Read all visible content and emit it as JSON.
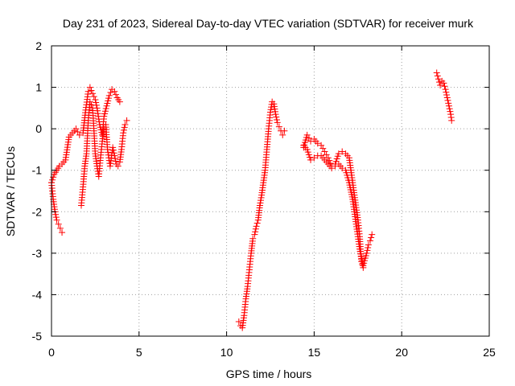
{
  "chart_data": {
    "type": "scatter",
    "title": "Day 231 of 2023, Sidereal Day-to-day VTEC variation (SDTVAR) for receiver murk",
    "xlabel": "GPS time / hours",
    "ylabel": "SDTVAR / TECUs",
    "xlim": [
      0,
      25
    ],
    "ylim": [
      -5,
      2
    ],
    "xticks": [
      "0",
      "5",
      "10",
      "15",
      "20",
      "25"
    ],
    "yticks": [
      "2",
      "1",
      "0",
      "-1",
      "-2",
      "-3",
      "-4",
      "-5"
    ],
    "grid": true,
    "marker": "plus",
    "color": "#ff0000",
    "series": [
      {
        "name": "segment-1",
        "x": [
          0.0,
          0.1,
          0.2,
          0.3,
          0.4,
          0.5,
          0.6
        ],
        "y": [
          -1.3,
          -1.7,
          -2.0,
          -2.2,
          -2.3,
          -2.4,
          -2.5
        ]
      },
      {
        "name": "segment-2",
        "x": [
          0.0,
          0.15,
          0.3,
          0.45,
          0.6,
          0.8,
          1.0,
          1.2,
          1.4,
          1.6,
          1.8,
          1.95,
          2.1,
          2.2,
          2.35,
          2.5,
          2.6,
          2.75,
          2.9,
          3.0,
          3.15,
          3.3,
          3.45,
          3.6,
          3.75,
          3.9
        ],
        "y": [
          -1.3,
          -1.1,
          -1.0,
          -0.9,
          -0.85,
          -0.75,
          -0.2,
          -0.1,
          0.0,
          -0.15,
          -0.1,
          0.45,
          0.9,
          1.0,
          0.85,
          0.7,
          0.5,
          0.1,
          -0.15,
          0.3,
          0.55,
          0.8,
          0.95,
          0.9,
          0.75,
          0.65
        ]
      },
      {
        "name": "segment-3",
        "x": [
          1.7,
          1.8,
          1.9,
          2.0,
          2.1,
          2.2,
          2.35,
          2.5,
          2.6,
          2.7,
          2.8,
          2.9,
          3.0,
          3.1,
          3.2,
          3.35,
          3.5,
          3.6,
          3.7,
          3.8,
          3.9,
          4.0,
          4.1,
          4.2,
          4.3
        ],
        "y": [
          -1.85,
          -1.4,
          -0.9,
          -0.6,
          0.2,
          0.65,
          0.5,
          -0.6,
          -0.9,
          -1.15,
          -0.7,
          -0.3,
          0.0,
          0.1,
          -0.5,
          -0.9,
          -0.45,
          -0.65,
          -0.85,
          -0.9,
          -0.8,
          -0.5,
          -0.1,
          0.1,
          0.2
        ]
      },
      {
        "name": "segment-4",
        "x": [
          10.7,
          10.8,
          10.9,
          11.0,
          11.1,
          11.2,
          11.3,
          11.4,
          11.5,
          11.6,
          11.7,
          11.8,
          11.9,
          12.0,
          12.1,
          12.2,
          12.3,
          12.4,
          12.5,
          12.6,
          12.7,
          12.8,
          12.9,
          13.0,
          13.1,
          13.2,
          13.3
        ],
        "y": [
          -4.65,
          -4.75,
          -4.8,
          -4.5,
          -4.1,
          -3.8,
          -3.4,
          -3.0,
          -2.65,
          -2.55,
          -2.35,
          -2.2,
          -1.85,
          -1.6,
          -1.3,
          -1.0,
          -0.5,
          0.0,
          0.4,
          0.65,
          0.6,
          0.35,
          0.15,
          0.05,
          -0.05,
          -0.15,
          -0.05
        ]
      },
      {
        "name": "segment-5",
        "x": [
          14.4,
          14.6,
          14.8,
          15.0,
          15.2,
          15.4,
          15.6,
          15.8,
          16.0,
          16.2,
          16.4,
          16.6,
          16.8,
          17.0,
          17.1,
          17.2,
          17.3,
          17.4,
          17.5,
          17.6,
          17.7,
          17.8
        ],
        "y": [
          -0.45,
          -0.15,
          -0.3,
          -0.25,
          -0.35,
          -0.4,
          -0.55,
          -0.7,
          -0.9,
          -0.85,
          -0.6,
          -0.55,
          -0.6,
          -0.7,
          -1.0,
          -1.3,
          -1.6,
          -1.9,
          -2.2,
          -2.6,
          -3.2,
          -3.35
        ]
      },
      {
        "name": "segment-6",
        "x": [
          14.4,
          14.6,
          14.8,
          15.0,
          15.2,
          15.4,
          15.6,
          15.8,
          16.0,
          16.2,
          16.4,
          16.6,
          16.8,
          17.0,
          17.2,
          17.4,
          17.6,
          17.8,
          18.0,
          18.1,
          18.2,
          18.3
        ],
        "y": [
          -0.4,
          -0.5,
          -0.75,
          -0.7,
          -0.65,
          -0.65,
          -0.75,
          -0.85,
          -0.95,
          -0.9,
          -0.85,
          -0.95,
          -1.0,
          -1.3,
          -1.7,
          -2.3,
          -2.9,
          -3.3,
          -3.0,
          -2.8,
          -2.7,
          -2.55
        ]
      },
      {
        "name": "segment-7",
        "x": [
          22.0,
          22.1,
          22.2,
          22.3,
          22.4,
          22.5,
          22.6,
          22.7,
          22.8,
          22.85
        ],
        "y": [
          1.35,
          1.2,
          1.05,
          1.15,
          1.1,
          0.95,
          0.75,
          0.55,
          0.35,
          0.2
        ]
      }
    ]
  }
}
